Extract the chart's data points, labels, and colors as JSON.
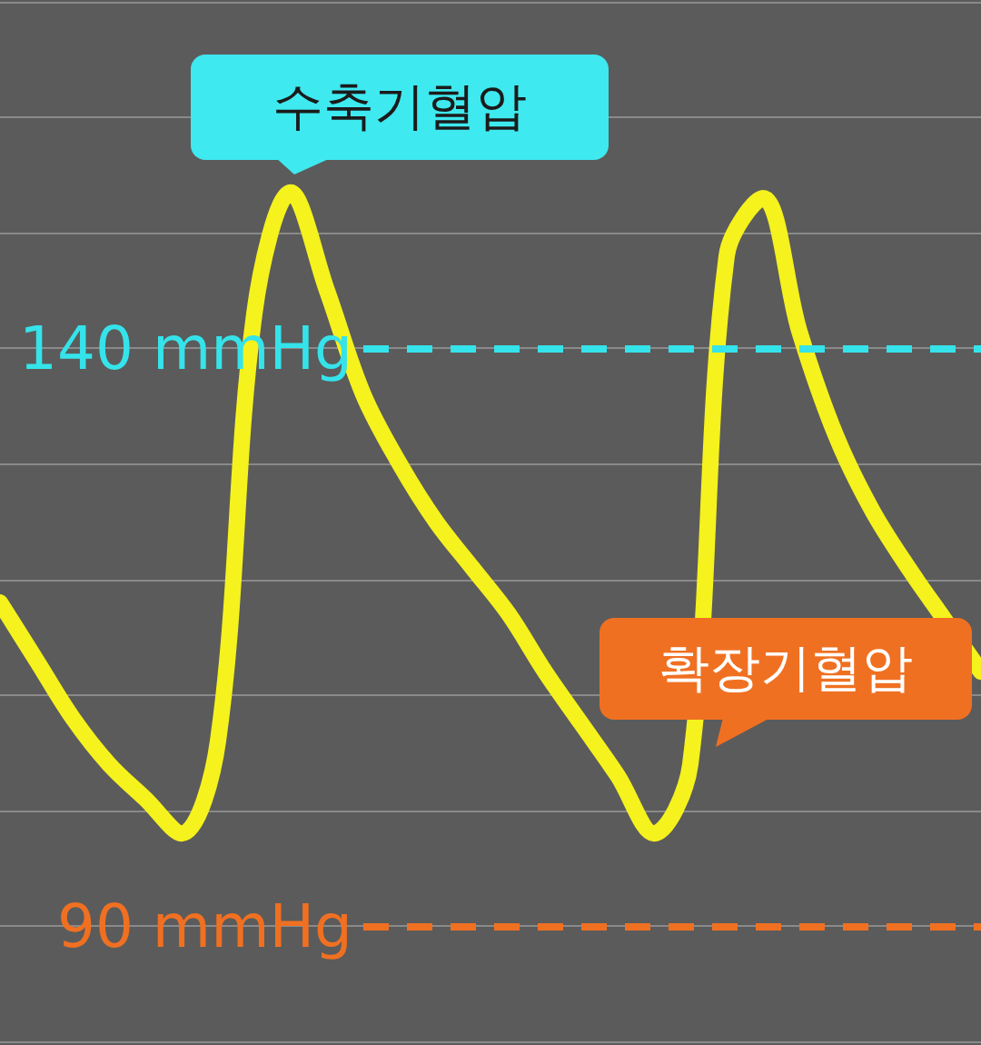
{
  "chart_data": {
    "type": "line",
    "categories": [
      null,
      null,
      null,
      null,
      null,
      null,
      null,
      null,
      null,
      null,
      null,
      null,
      null,
      null,
      null,
      null,
      null,
      null,
      null,
      null,
      null,
      null,
      null,
      null,
      null,
      null,
      null,
      null
    ],
    "series": [
      {
        "color": "#f5f21e",
        "values": [
          118,
          113,
          108,
          104,
          101,
          98,
          106,
          143,
          153.5,
          145,
          136,
          130,
          125,
          121,
          117,
          112,
          107.5,
          103,
          98,
          104,
          148,
          153,
          141.5,
          132.5,
          126,
          121,
          116.5,
          112
        ]
      }
    ],
    "ylim": [
      80,
      170
    ],
    "yticks": [
      {
        "value": 80,
        "label": null
      },
      {
        "value": 90,
        "label": null
      },
      {
        "value": 100,
        "label": null
      },
      {
        "value": 110,
        "label": null
      },
      {
        "value": 120,
        "label": null
      },
      {
        "value": 130,
        "label": null
      },
      {
        "value": 140,
        "label": null
      },
      {
        "value": 150,
        "label": null
      },
      {
        "value": 160,
        "label": null
      },
      {
        "value": 170,
        "label": null
      }
    ],
    "grid": "y",
    "tick_labels": false,
    "line_style": "solid",
    "ref_lines": [
      {
        "axis": "y",
        "value": 140,
        "label": "140 mmHg",
        "color": "#35e3ea",
        "line_style": "dashed"
      },
      {
        "axis": "y",
        "value": 90,
        "label": "90 mmHg",
        "color": "#f07022",
        "line_style": "dashed"
      }
    ],
    "annotations": [
      "수축기혈압",
      "확장기혈압"
    ]
  }
}
